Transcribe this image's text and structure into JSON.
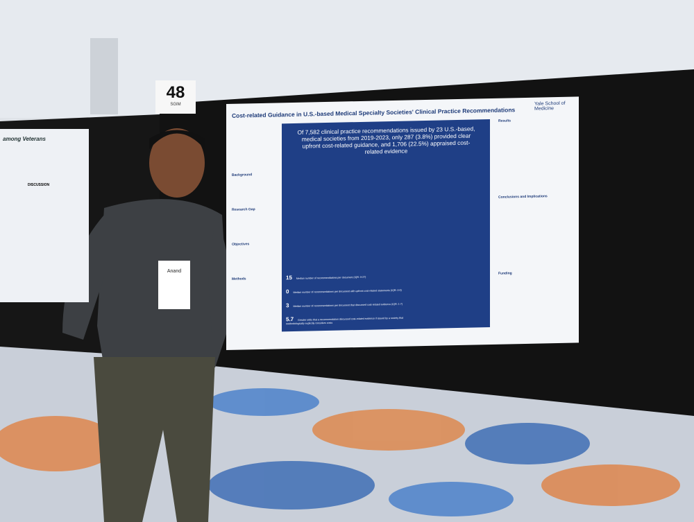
{
  "sign": {
    "number": "48",
    "org": "SGIM"
  },
  "poster": {
    "title": "Cost-related Guidance in U.S.-based Medical Specialty Societies' Clinical Practice Recommendations",
    "institution": "Yale School of Medicine",
    "headline": "Of 7,582 clinical practice recommendations issued by 23 U.S.-based, medical societies from 2019-2023, only 287 (3.8%) provided clear upfront cost-related guidance, and 1,706 (22.5%) appraised cost-related evidence",
    "left_sections": [
      "Background",
      "Research Gap",
      "Objectives",
      "Methods"
    ],
    "stats": [
      {
        "value": "15",
        "label": "Median number of recommendations per document (IQR: 9-27)"
      },
      {
        "value": "0",
        "label": "Median number of recommendations per document with upfront cost-related statements (IQR: 0-0)"
      },
      {
        "value": "3",
        "label": "Median number of recommendations per document that discussed cost-related evidence (IQR: 1-7)"
      },
      {
        "value": "5.7",
        "label": "Greater odds that a recommendation discussed cost-related evidence if issued by a society that methodologically explicitly considers costs"
      }
    ],
    "right_sections": [
      "Results",
      "Conclusions and Implications",
      "Funding"
    ]
  },
  "left_poster": {
    "title": "among Veterans",
    "section": "DISCUSSION"
  },
  "badge": {
    "name": "Anand"
  }
}
